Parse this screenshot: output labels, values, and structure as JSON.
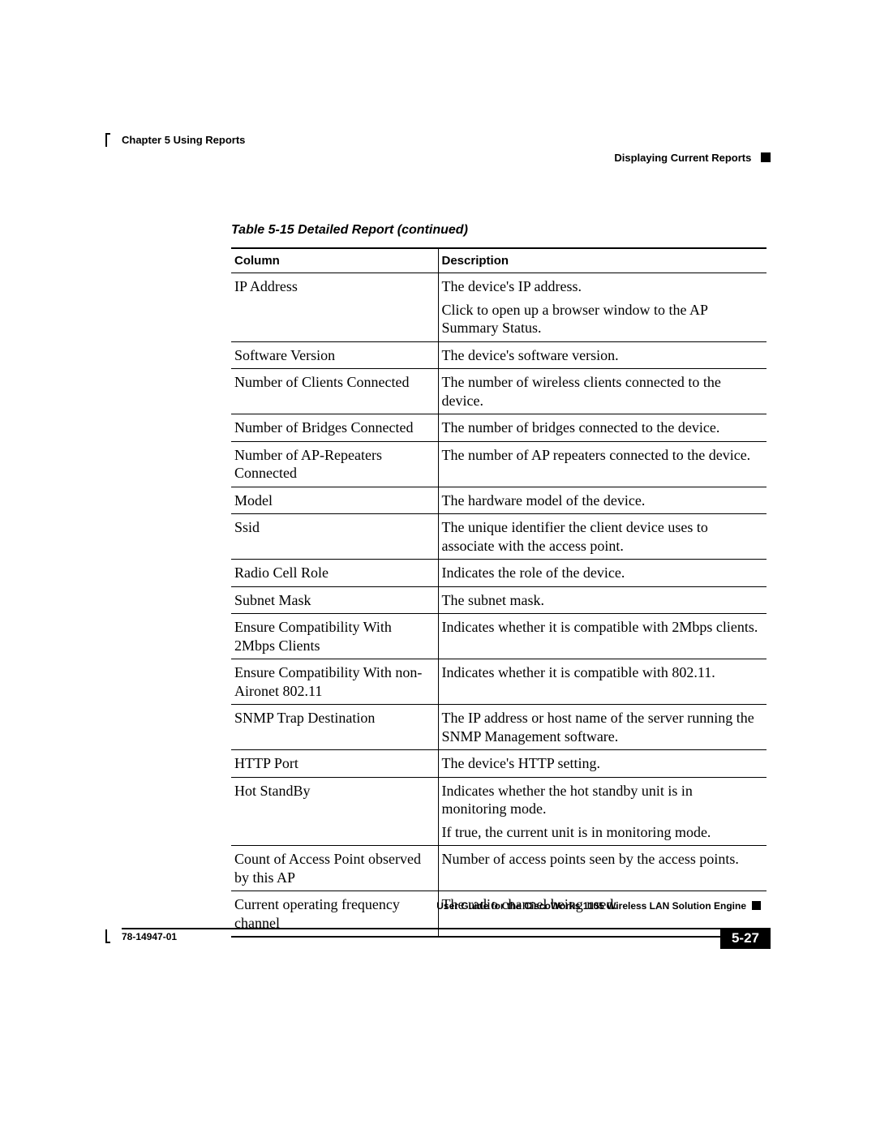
{
  "header": {
    "chapter": "Chapter 5    Using Reports",
    "section": "Displaying Current Reports"
  },
  "table": {
    "caption": "Table 5-15   Detailed Report  (continued)",
    "columns": [
      "Column",
      "Description"
    ],
    "rows": [
      {
        "col": "IP Address",
        "desc": [
          "The device's IP address.",
          "Click to open up a browser window to the AP Summary Status."
        ]
      },
      {
        "col": "Software Version",
        "desc": [
          "The device's software version."
        ]
      },
      {
        "col": "Number of Clients Connected",
        "desc": [
          "The number of wireless clients connected to the device."
        ]
      },
      {
        "col": "Number of Bridges Connected",
        "desc": [
          "The number of bridges connected to the device."
        ]
      },
      {
        "col": "Number of AP-Repeaters Connected",
        "desc": [
          "The number of AP repeaters connected to the device."
        ]
      },
      {
        "col": "Model",
        "desc": [
          "The hardware model of the device."
        ]
      },
      {
        "col": "Ssid",
        "desc": [
          "The unique identifier the client device uses to associate with the access point."
        ]
      },
      {
        "col": "Radio Cell Role",
        "desc": [
          "Indicates the role of the device."
        ]
      },
      {
        "col": "Subnet Mask",
        "desc": [
          "The subnet mask."
        ]
      },
      {
        "col": "Ensure Compatibility With 2Mbps Clients",
        "desc": [
          "Indicates whether it is compatible with 2Mbps clients."
        ]
      },
      {
        "col": "Ensure Compatibility With non-Aironet 802.11",
        "desc": [
          "Indicates whether it is compatible with 802.11."
        ]
      },
      {
        "col": "SNMP Trap Destination",
        "desc": [
          "The IP address or host name of the server running the SNMP Management software."
        ]
      },
      {
        "col": "HTTP Port",
        "desc": [
          "The device's HTTP setting."
        ]
      },
      {
        "col": "Hot StandBy",
        "desc": [
          "Indicates whether the hot standby unit is in monitoring mode.",
          "If true, the current unit is in monitoring mode."
        ]
      },
      {
        "col": "Count of Access Point observed by this AP",
        "desc": [
          "Number of access points seen by the access points."
        ]
      },
      {
        "col": "Current operating frequency channel",
        "desc": [
          "The radio channel being used."
        ]
      }
    ]
  },
  "footer": {
    "guide": "User Guide for the CiscoWorks 1105 Wireless LAN Solution Engine",
    "docnum": "78-14947-01",
    "page": "5-27"
  }
}
